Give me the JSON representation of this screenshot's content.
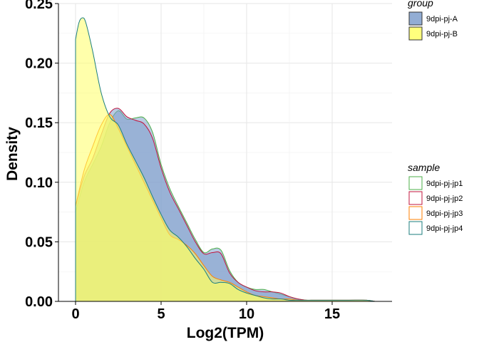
{
  "chart_data": {
    "type": "area",
    "title": "",
    "xlabel": "Log2(TPM)",
    "ylabel": "Density",
    "xlim": [
      -1,
      18.5
    ],
    "ylim": [
      0,
      0.25
    ],
    "xticks": [
      0,
      5,
      10,
      15
    ],
    "xtick_labels": [
      "0",
      "5",
      "10",
      "15"
    ],
    "yticks": [
      0.0,
      0.05,
      0.1,
      0.15,
      0.2,
      0.25
    ],
    "ytick_labels": [
      "0.00",
      "0.05",
      "0.10",
      "0.15",
      "0.20",
      "0.25"
    ],
    "grid": true,
    "legend_position": "right",
    "legends": [
      {
        "title": "group",
        "entries": [
          {
            "label": "9dpi-pj-A",
            "fill": "#7f9fcc"
          },
          {
            "label": "9dpi-pj-B",
            "fill": "#ffff66"
          }
        ]
      },
      {
        "title": "sample",
        "entries": [
          {
            "label": "9dpi-pj-jp1",
            "stroke": "#4daf4a"
          },
          {
            "label": "9dpi-pj-jp2",
            "stroke": "#c0143c"
          },
          {
            "label": "9dpi-pj-jp3",
            "stroke": "#ff7f00"
          },
          {
            "label": "9dpi-pj-jp4",
            "stroke": "#1b7e7e"
          }
        ]
      }
    ],
    "series": [
      {
        "group": "9dpi-pj-A",
        "sample": "9dpi-pj-jp1",
        "fill": "#7f9fcc",
        "stroke": "#4daf4a",
        "x": [
          0,
          0.5,
          1,
          1.5,
          2,
          2.5,
          3,
          3.5,
          4,
          4.5,
          5,
          5.5,
          6,
          6.5,
          7,
          7.5,
          8,
          8.5,
          9,
          9.5,
          10,
          10.5,
          11,
          11.5,
          12,
          12.5,
          13,
          13.5,
          14,
          15,
          16,
          17,
          17.5
        ],
        "y": [
          0.075,
          0.1,
          0.115,
          0.13,
          0.15,
          0.16,
          0.153,
          0.154,
          0.154,
          0.142,
          0.115,
          0.095,
          0.08,
          0.066,
          0.052,
          0.041,
          0.044,
          0.043,
          0.026,
          0.016,
          0.012,
          0.01,
          0.01,
          0.008,
          0.006,
          0.004,
          0.002,
          0.001,
          0.001,
          0.001,
          0.001,
          0.001,
          0.0
        ]
      },
      {
        "group": "9dpi-pj-A",
        "sample": "9dpi-pj-jp2",
        "fill": "#7f9fcc",
        "stroke": "#c0143c",
        "x": [
          0,
          0.5,
          1,
          1.5,
          2,
          2.5,
          3,
          3.5,
          4,
          4.5,
          5,
          5.5,
          6,
          6.5,
          7,
          7.5,
          8,
          8.5,
          9,
          9.5,
          10,
          10.5,
          11,
          11.5,
          12,
          12.5,
          13,
          13.5,
          14,
          15,
          16,
          17,
          17.5
        ],
        "y": [
          0.08,
          0.105,
          0.12,
          0.14,
          0.158,
          0.162,
          0.155,
          0.152,
          0.149,
          0.137,
          0.112,
          0.092,
          0.078,
          0.064,
          0.05,
          0.04,
          0.041,
          0.04,
          0.024,
          0.016,
          0.012,
          0.009,
          0.008,
          0.008,
          0.007,
          0.004,
          0.002,
          0.001,
          0.001,
          0.001,
          0.001,
          0.001,
          0.0
        ]
      },
      {
        "group": "9dpi-pj-B",
        "sample": "9dpi-pj-jp3",
        "fill": "#ffff66",
        "stroke": "#ff7f00",
        "x": [
          0,
          0.5,
          1,
          1.5,
          2,
          2.5,
          3,
          3.5,
          4,
          4.5,
          5,
          5.5,
          6,
          6.5,
          7,
          7.5,
          8,
          8.5,
          9,
          9.5,
          10,
          10.5,
          11,
          11.5,
          12,
          12.5,
          13,
          13.5,
          14,
          15,
          16,
          17,
          17.5
        ],
        "y": [
          0.08,
          0.11,
          0.13,
          0.148,
          0.157,
          0.145,
          0.13,
          0.115,
          0.1,
          0.085,
          0.07,
          0.056,
          0.052,
          0.047,
          0.04,
          0.03,
          0.021,
          0.018,
          0.016,
          0.012,
          0.008,
          0.005,
          0.004,
          0.003,
          0.002,
          0.002,
          0.001,
          0.001,
          0.001,
          0.001,
          0.001,
          0.001,
          0.0
        ]
      },
      {
        "group": "9dpi-pj-B",
        "sample": "9dpi-pj-jp4",
        "fill": "#ffff66",
        "stroke": "#1b7e7e",
        "x": [
          0,
          0.2,
          0.4,
          0.6,
          1,
          1.5,
          2,
          2.5,
          3,
          3.5,
          4,
          4.5,
          5,
          5.5,
          6,
          6.5,
          7,
          7.5,
          8,
          8.5,
          9,
          9.5,
          10,
          10.5,
          11,
          11.5,
          12,
          12.5,
          13,
          13.5,
          14,
          15,
          16,
          17,
          17.5
        ],
        "y": [
          0.22,
          0.234,
          0.238,
          0.234,
          0.21,
          0.175,
          0.155,
          0.148,
          0.132,
          0.118,
          0.104,
          0.088,
          0.073,
          0.06,
          0.054,
          0.046,
          0.036,
          0.027,
          0.016,
          0.016,
          0.015,
          0.01,
          0.007,
          0.005,
          0.003,
          0.002,
          0.002,
          0.001,
          0.001,
          0.001,
          0.001,
          0.001,
          0.001,
          0.001,
          0.0
        ]
      }
    ]
  }
}
